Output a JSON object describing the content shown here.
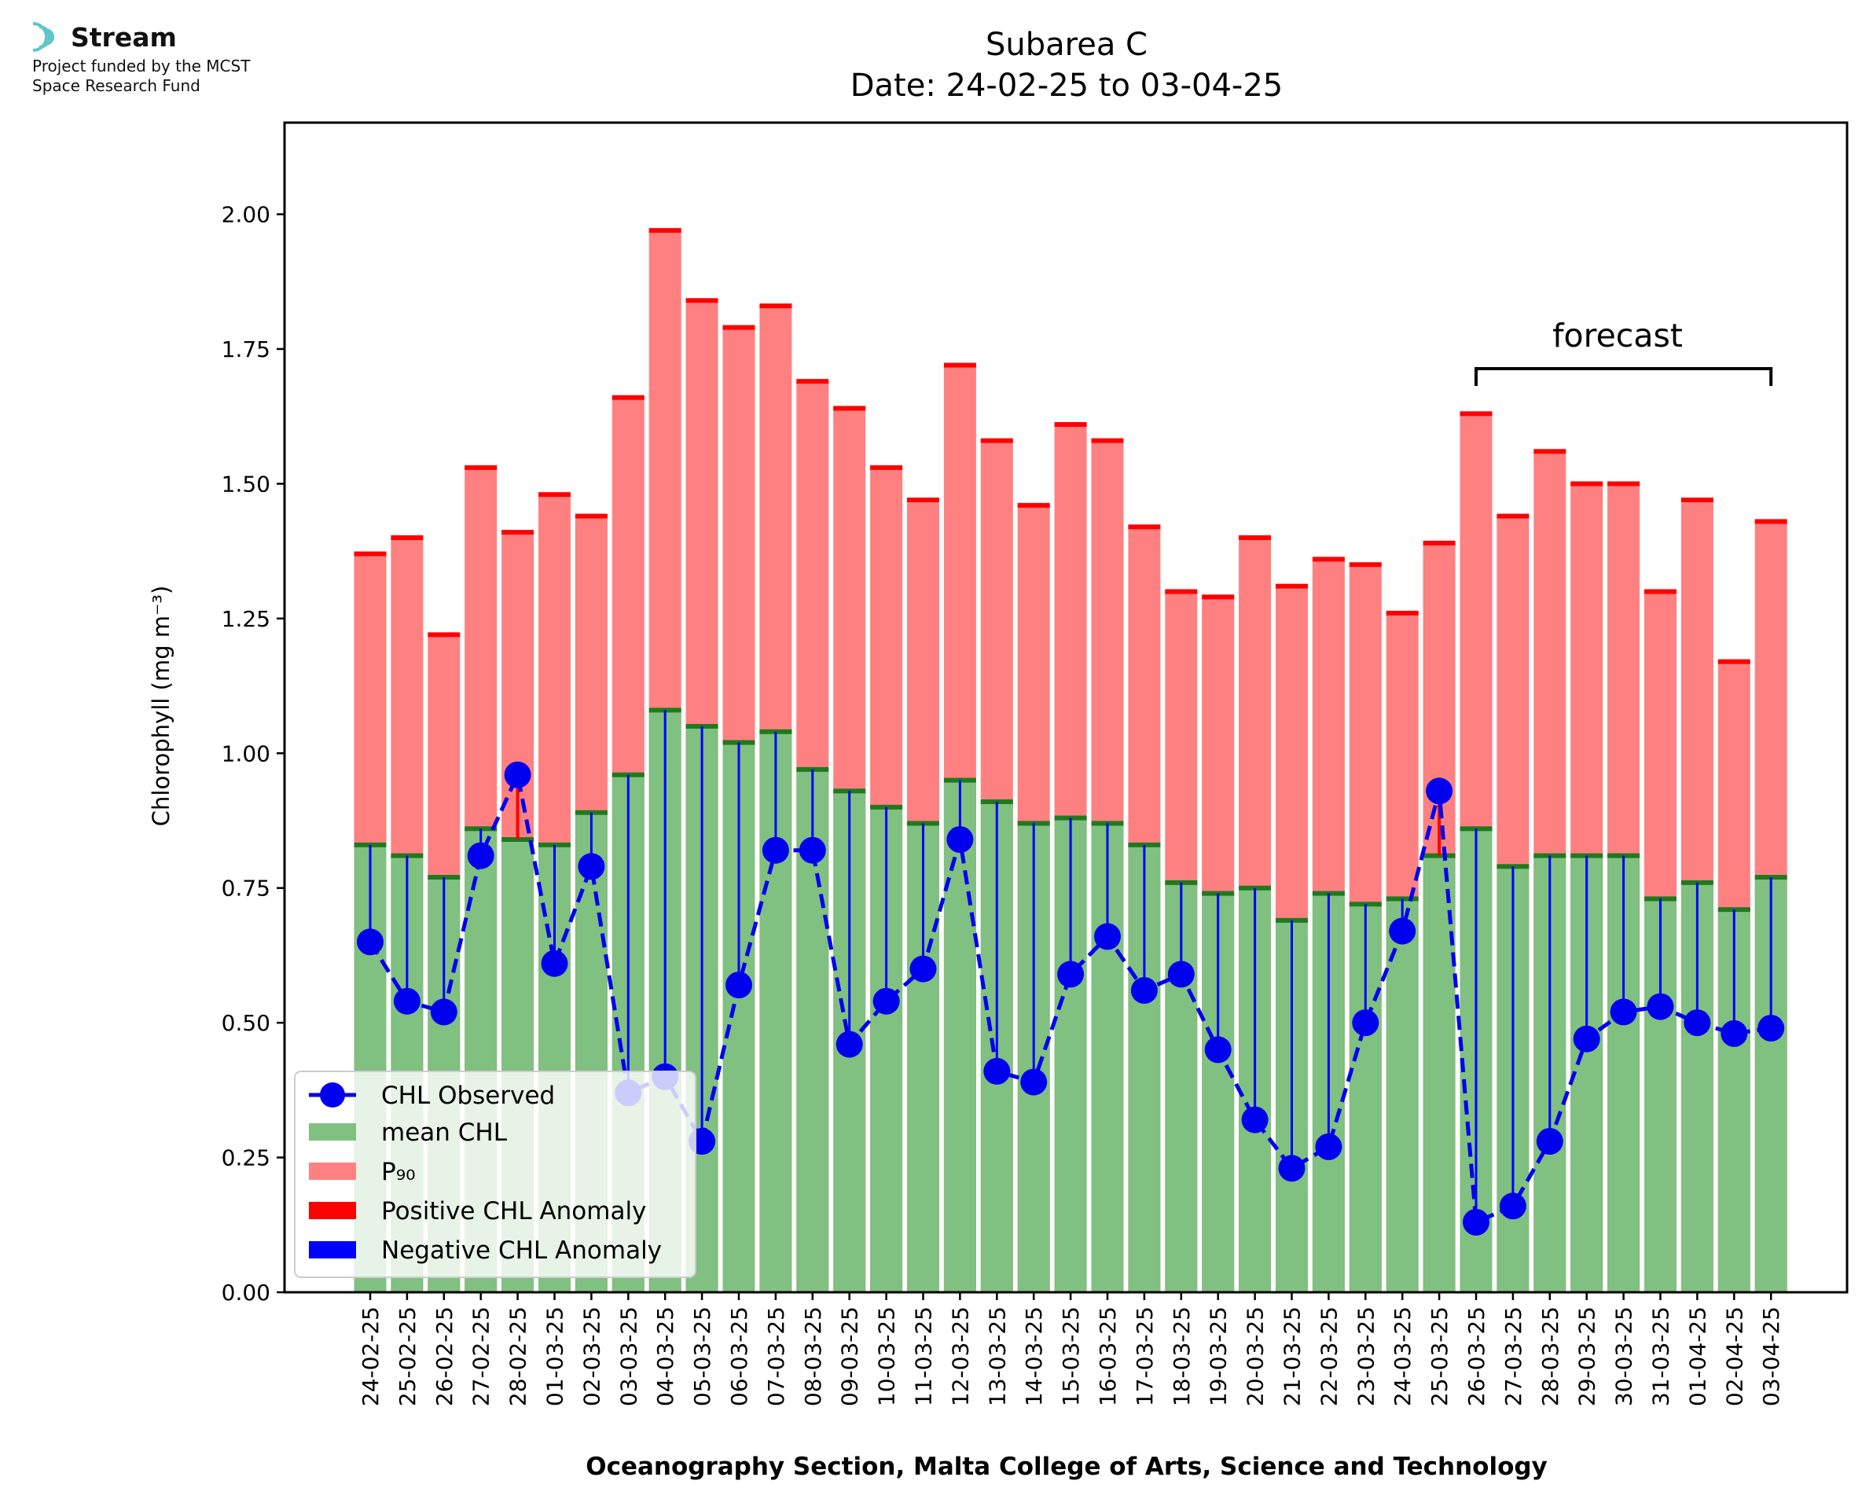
{
  "logo": {
    "name": "Stream",
    "funding_line1": "Project funded by the MCST",
    "funding_line2": "Space Research Fund",
    "colors": {
      "arcs": "#5fc6c9",
      "text": "#111111"
    }
  },
  "chart_data": {
    "type": "bar",
    "title": "Subarea C",
    "subtitle": "Date: 24-02-25 to 03-04-25",
    "xlabel": "Oceanography Section, Malta College of Arts, Science and Technology",
    "ylabel": "Chlorophyll (mg m⁻³)",
    "ylim": [
      0,
      2.17
    ],
    "yticks": [
      "0.00",
      "0.25",
      "0.50",
      "0.75",
      "1.00",
      "1.25",
      "1.50",
      "1.75",
      "2.00"
    ],
    "categories": [
      "24-02-25",
      "25-02-25",
      "26-02-25",
      "27-02-25",
      "28-02-25",
      "01-03-25",
      "02-03-25",
      "03-03-25",
      "04-03-25",
      "05-03-25",
      "06-03-25",
      "07-03-25",
      "08-03-25",
      "09-03-25",
      "10-03-25",
      "11-03-25",
      "12-03-25",
      "13-03-25",
      "14-03-25",
      "15-03-25",
      "16-03-25",
      "17-03-25",
      "18-03-25",
      "19-03-25",
      "20-03-25",
      "21-03-25",
      "22-03-25",
      "23-03-25",
      "24-03-25",
      "25-03-25",
      "26-03-25",
      "27-03-25",
      "28-03-25",
      "29-03-25",
      "30-03-25",
      "31-03-25",
      "01-04-25",
      "02-04-25",
      "03-04-25"
    ],
    "series": [
      {
        "name": "mean CHL",
        "color": "#80c080",
        "values": [
          0.83,
          0.81,
          0.77,
          0.86,
          0.84,
          0.83,
          0.89,
          0.96,
          1.08,
          1.05,
          1.02,
          1.04,
          0.97,
          0.93,
          0.9,
          0.87,
          0.95,
          0.91,
          0.87,
          0.88,
          0.87,
          0.83,
          0.76,
          0.74,
          0.75,
          0.69,
          0.74,
          0.72,
          0.73,
          0.81,
          0.86,
          0.79,
          0.81,
          0.81,
          0.81,
          0.73,
          0.76,
          0.71,
          0.77
        ]
      },
      {
        "name": "P₉₀",
        "color": "#ff8080",
        "values": [
          1.37,
          1.4,
          1.22,
          1.53,
          1.41,
          1.48,
          1.44,
          1.66,
          1.97,
          1.84,
          1.79,
          1.83,
          1.69,
          1.64,
          1.53,
          1.47,
          1.72,
          1.58,
          1.46,
          1.61,
          1.58,
          1.42,
          1.3,
          1.29,
          1.4,
          1.31,
          1.36,
          1.35,
          1.26,
          1.39,
          1.63,
          1.44,
          1.56,
          1.5,
          1.5,
          1.3,
          1.47,
          1.17,
          1.43
        ]
      },
      {
        "name": "CHL Observed",
        "color": "#0000ee",
        "values": [
          0.65,
          0.54,
          0.52,
          0.81,
          0.96,
          0.61,
          0.79,
          0.37,
          0.4,
          0.28,
          0.57,
          0.82,
          0.82,
          0.46,
          0.54,
          0.6,
          0.84,
          0.41,
          0.39,
          0.59,
          0.66,
          0.56,
          0.59,
          0.45,
          0.32,
          0.23,
          0.27,
          0.5,
          0.67,
          0.93,
          0.13,
          0.16,
          0.28,
          0.47,
          0.52,
          0.53,
          0.5,
          0.48,
          0.49
        ]
      }
    ],
    "anomaly_colors": {
      "positive": "#ff0000",
      "negative": "#0000ff"
    },
    "legend": {
      "placement": "lower-left",
      "entries": [
        "CHL Observed",
        "mean CHL",
        "P₉₀",
        "Positive CHL Anomaly",
        "Negative CHL Anomaly"
      ]
    },
    "annotation": {
      "text": "forecast",
      "from": "26-03-25",
      "to": "03-04-25"
    },
    "grid": false
  }
}
